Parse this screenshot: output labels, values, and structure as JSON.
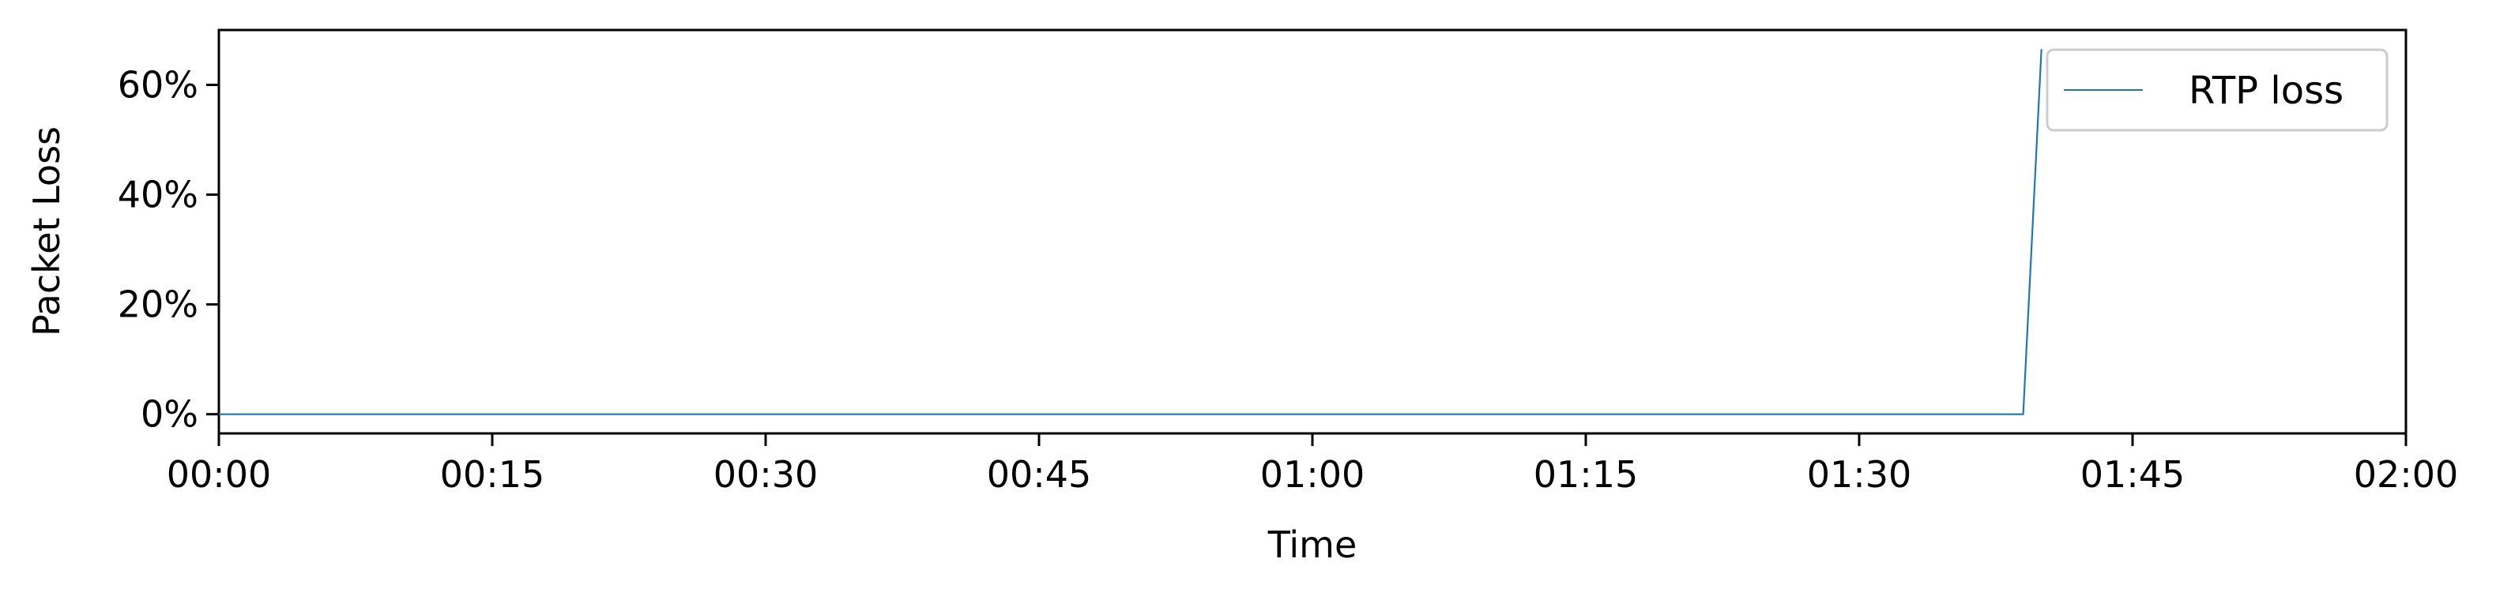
{
  "chart_data": {
    "type": "line",
    "title": "",
    "xlabel": "Time",
    "ylabel": "Packet Loss",
    "xlim": [
      "00:00",
      "02:00"
    ],
    "ylim": [
      -3.5,
      70
    ],
    "x_ticks": [
      "00:00",
      "00:15",
      "00:30",
      "00:45",
      "01:00",
      "01:15",
      "01:30",
      "01:45",
      "02:00"
    ],
    "y_ticks": [
      {
        "value": 0,
        "label": "0%"
      },
      {
        "value": 20,
        "label": "20%"
      },
      {
        "value": 40,
        "label": "40%"
      },
      {
        "value": 60,
        "label": "60%"
      }
    ],
    "series": [
      {
        "name": "RTP loss",
        "color": "#1f77b4",
        "points": [
          {
            "x": "00:00",
            "y": 0
          },
          {
            "x": "01:39",
            "y": 0
          },
          {
            "x": "01:40",
            "y": 66.5
          }
        ]
      }
    ],
    "legend_position": "top-right",
    "grid": false
  }
}
